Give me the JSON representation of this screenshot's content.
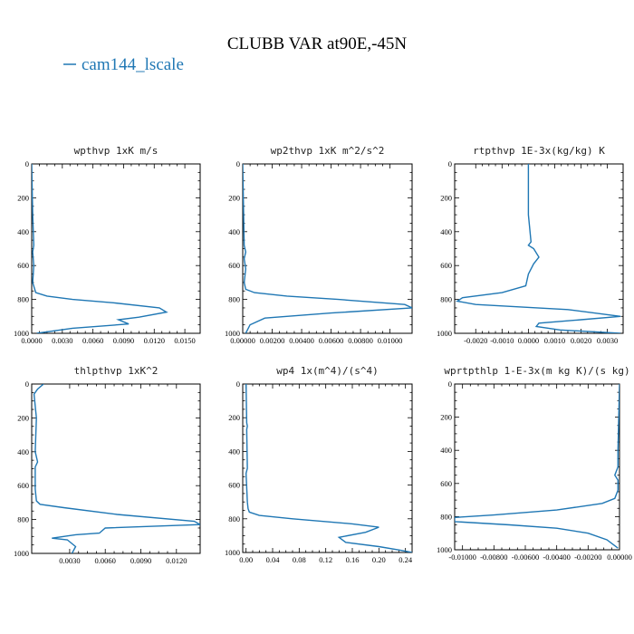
{
  "title": "CLUBB VAR at90E,-45N",
  "legend": {
    "label": "cam144_lscale",
    "color": "#1f77b4"
  },
  "chart_data": [
    {
      "type": "line",
      "title": "wpthvp   1xK m/s",
      "xlim": [
        0,
        0.0165
      ],
      "ylim": [
        0,
        1000
      ],
      "xticks": [
        0.0,
        0.003,
        0.006,
        0.009,
        0.012,
        0.015
      ],
      "xtick_labels": [
        "0.0000",
        "0.0030",
        "0.0060",
        "0.0090",
        "0.0120",
        "0.0150"
      ],
      "yticks": [
        0,
        200,
        400,
        600,
        800,
        1000
      ],
      "ytick_labels": [
        "0",
        "200",
        "400",
        "600",
        "800",
        "1000"
      ],
      "series": [
        {
          "name": "cam144_lscale",
          "x": [
            0.0,
            0.0001,
            0.0002,
            0.0001,
            0.0002,
            0.0001,
            0.0004,
            0.0015,
            0.004,
            0.008,
            0.0125,
            0.0132,
            0.0105,
            0.0085,
            0.0095,
            0.004,
            0.0005
          ],
          "y": [
            0,
            300,
            480,
            520,
            600,
            700,
            760,
            780,
            800,
            820,
            850,
            875,
            905,
            920,
            945,
            970,
            1000
          ]
        }
      ]
    },
    {
      "type": "line",
      "title": "wp2thvp   1xK m^2/s^2",
      "xlim": [
        0,
        0.0115
      ],
      "ylim": [
        0,
        1000
      ],
      "xticks": [
        0.0,
        0.002,
        0.004,
        0.006,
        0.008,
        0.01
      ],
      "xtick_labels": [
        "0.00000",
        "0.00200",
        "0.00400",
        "0.00600",
        "0.00800",
        "0.01000"
      ],
      "yticks": [
        0,
        200,
        400,
        600,
        800,
        1000
      ],
      "ytick_labels": [
        "0",
        "200",
        "400",
        "600",
        "800",
        "1000"
      ],
      "series": [
        {
          "name": "cam144_lscale",
          "x": [
            0.0,
            0.0001,
            0.0002,
            0.0001,
            0.0002,
            0.0001,
            0.0002,
            0.0008,
            0.003,
            0.0065,
            0.011,
            0.0115,
            0.006,
            0.0015,
            0.0005,
            0.0002
          ],
          "y": [
            0,
            480,
            520,
            560,
            620,
            700,
            740,
            760,
            780,
            800,
            830,
            850,
            880,
            910,
            950,
            1000
          ]
        }
      ]
    },
    {
      "type": "line",
      "title": "rtpthvp   1E-3x(kg/kg) K",
      "xlim": [
        -0.0028,
        0.0036
      ],
      "ylim": [
        0,
        1000
      ],
      "xticks": [
        -0.002,
        -0.001,
        0.0,
        0.001,
        0.002,
        0.003
      ],
      "xtick_labels": [
        "-0.0020",
        "-0.0010",
        "0.0000",
        "0.0010",
        "0.0020",
        "0.0030"
      ],
      "yticks": [
        0,
        200,
        400,
        600,
        800,
        1000
      ],
      "ytick_labels": [
        "0",
        "200",
        "400",
        "600",
        "800",
        "1000"
      ],
      "series": [
        {
          "name": "cam144_lscale",
          "x": [
            0.0,
            0.0,
            0.0001,
            0.0,
            0.0002,
            0.0004,
            0.0002,
            0.0001,
            0.0,
            -0.0001,
            -0.001,
            -0.0025,
            -0.0027,
            -0.002,
            0.0015,
            0.0035,
            0.002,
            0.0004,
            0.0003,
            0.0012,
            0.0035
          ],
          "y": [
            0,
            300,
            460,
            480,
            500,
            550,
            590,
            620,
            650,
            720,
            760,
            790,
            810,
            830,
            860,
            900,
            920,
            940,
            960,
            980,
            1000
          ]
        }
      ]
    },
    {
      "type": "line",
      "title": "thlpthvp   1xK^2",
      "xlim": [
        -0.0002,
        0.014
      ],
      "ylim": [
        0,
        1000
      ],
      "xticks": [
        0.003,
        0.006,
        0.009,
        0.012
      ],
      "xtick_labels": [
        "0.0030",
        "0.0060",
        "0.0090",
        "0.0120"
      ],
      "yticks": [
        0,
        200,
        400,
        600,
        800,
        1000
      ],
      "ytick_labels": [
        "0",
        "200",
        "400",
        "600",
        "800",
        "1000"
      ],
      "series": [
        {
          "name": "cam144_lscale",
          "x": [
            0.0008,
            0.0003,
            0.0,
            0.0002,
            0.0001,
            0.0003,
            0.0001,
            0.0001,
            0.0002,
            0.0005,
            0.0025,
            0.007,
            0.0135,
            0.014,
            0.006,
            0.0055,
            0.0035,
            0.0015,
            0.0028,
            0.0035,
            0.0032
          ],
          "y": [
            0,
            30,
            60,
            200,
            400,
            460,
            490,
            620,
            690,
            710,
            730,
            770,
            810,
            830,
            850,
            880,
            890,
            910,
            920,
            960,
            1000
          ]
        }
      ]
    },
    {
      "type": "line",
      "title": "wp4   1x(m^4)/(s^4)",
      "xlim": [
        -0.005,
        0.25
      ],
      "ylim": [
        0,
        1000
      ],
      "xticks": [
        0.0,
        0.04,
        0.08,
        0.12,
        0.16,
        0.2,
        0.24
      ],
      "xtick_labels": [
        "0.00",
        "0.04",
        "0.08",
        "0.12",
        "0.16",
        "0.20",
        "0.24"
      ],
      "yticks": [
        0,
        200,
        400,
        600,
        800,
        1000
      ],
      "ytick_labels": [
        "0",
        "200",
        "400",
        "600",
        "800",
        "1000"
      ],
      "series": [
        {
          "name": "cam144_lscale",
          "x": [
            0.0,
            0.001,
            0.002,
            0.001,
            0.002,
            0.0,
            0.002,
            0.003,
            0.005,
            0.02,
            0.07,
            0.16,
            0.2,
            0.18,
            0.14,
            0.15,
            0.2,
            0.23,
            0.25
          ],
          "y": [
            0,
            230,
            250,
            270,
            500,
            530,
            700,
            740,
            760,
            780,
            800,
            830,
            850,
            880,
            910,
            940,
            965,
            985,
            1000
          ]
        }
      ]
    },
    {
      "type": "line",
      "title": "wprtpthlp   1-E-3x(m kg K)/(s kg)",
      "xlim": [
        -0.0105,
        0.0
      ],
      "ylim": [
        0,
        1000
      ],
      "xticks": [
        -0.01,
        -0.008,
        -0.006,
        -0.004,
        -0.002,
        0.0
      ],
      "xtick_labels": [
        "-0.01000",
        "-0.00800",
        "-0.00600",
        "-0.00400",
        "-0.00200",
        "0.00000"
      ],
      "yticks": [
        0,
        200,
        400,
        600,
        800,
        1000
      ],
      "ytick_labels": [
        "0",
        "200",
        "400",
        "600",
        "800",
        "1000"
      ],
      "series": [
        {
          "name": "cam144_lscale",
          "x": [
            0.0,
            -0.0001,
            -0.0001,
            -0.0003,
            -0.0001,
            -0.0001,
            -0.0003,
            -0.0011,
            -0.004,
            -0.008,
            -0.0105,
            -0.0105,
            -0.007,
            -0.004,
            -0.002,
            -0.0008,
            -0.0001
          ],
          "y": [
            0,
            400,
            500,
            550,
            580,
            640,
            690,
            720,
            760,
            790,
            805,
            830,
            850,
            870,
            900,
            940,
            990
          ]
        }
      ]
    }
  ]
}
